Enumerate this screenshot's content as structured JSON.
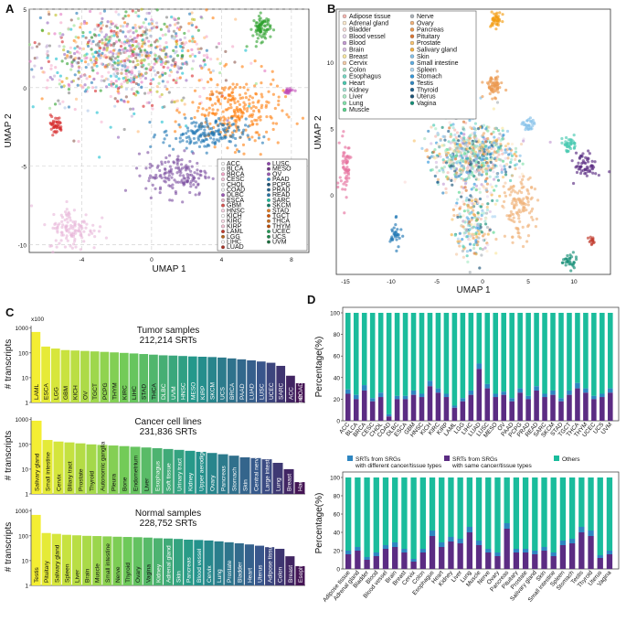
{
  "panels": {
    "a": "A",
    "b": "B",
    "c": "C",
    "d": "D"
  },
  "chart_data": [
    {
      "id": "A",
      "type": "scatter",
      "title": "",
      "xlabel": "UMAP 1",
      "ylabel": "UMAP 2",
      "xlim": [
        -7,
        9
      ],
      "ylim": [
        -10.5,
        5
      ],
      "xticks": [
        -4,
        0,
        4,
        8
      ],
      "yticks": [
        -10,
        -5,
        0,
        5
      ],
      "legend": [
        "ACC",
        "BLCA",
        "BRCA",
        "CESC",
        "CHOL",
        "COAD",
        "DLBC",
        "ESCA",
        "GBM",
        "HNSC",
        "KICH",
        "KIRC",
        "KIRP",
        "LAML",
        "LGG",
        "LIHC",
        "LUAD",
        "LUSC",
        "MESO",
        "OV",
        "PAAD",
        "PCPG",
        "PRAD",
        "READ",
        "SARC",
        "SKCM",
        "STAD",
        "TGCT",
        "THCA",
        "THYM",
        "UCEC",
        "UCS",
        "UVM"
      ],
      "legend_colors": [
        "#f7f7f7",
        "#e8e8e8",
        "#f4a6c8",
        "#f2c6d9",
        "#e6e6e6",
        "#f0f0f0",
        "#9b59b6",
        "#e8b6c8",
        "#d9534f",
        "#f6d2e0",
        "#ffffff",
        "#f9dbe6",
        "#f4c2d4",
        "#c0392b",
        "#b5651d",
        "#f8f8f8",
        "#a93226",
        "#8e44ad",
        "#6c3483",
        "#9b59b6",
        "#2e86c1",
        "#1a5276",
        "#21618c",
        "#2874a6",
        "#1abc9c",
        "#117a65",
        "#e67e22",
        "#d35400",
        "#ca6f1e",
        "#ba4a00",
        "#239b56",
        "#1e8449",
        "#196f3d"
      ],
      "clusters": [
        {
          "name": "main",
          "cx": -1.5,
          "cy": 2,
          "sx": 2.6,
          "sy": 1.6,
          "n": 900
        },
        {
          "name": "green-top",
          "cx": 6.3,
          "cy": 3.8,
          "sx": 0.25,
          "sy": 0.4,
          "n": 80
        },
        {
          "name": "orange",
          "cx": 4.8,
          "cy": -1.5,
          "sx": 1.3,
          "sy": 1.1,
          "n": 260
        },
        {
          "name": "blue",
          "cx": 3,
          "cy": -3,
          "sx": 1.2,
          "sy": 0.5,
          "n": 160
        },
        {
          "name": "purple",
          "cx": 1.5,
          "cy": -5.5,
          "sx": 0.9,
          "sy": 0.7,
          "n": 150
        },
        {
          "name": "pink-bottom",
          "cx": -4.5,
          "cy": -9,
          "sx": 0.7,
          "sy": 0.7,
          "n": 120
        },
        {
          "name": "red-left",
          "cx": -5.5,
          "cy": -2.4,
          "sx": 0.2,
          "sy": 0.3,
          "n": 40
        },
        {
          "name": "magenta-right",
          "cx": 7.8,
          "cy": -0.2,
          "sx": 0.2,
          "sy": 0.1,
          "n": 20
        }
      ]
    },
    {
      "id": "B",
      "type": "scatter",
      "xlabel": "UMAP 1",
      "ylabel": "UMAP 2",
      "xlim": [
        -16,
        14
      ],
      "ylim": [
        -6,
        14
      ],
      "xticks": [
        -15,
        -10,
        -5,
        0,
        5,
        10
      ],
      "yticks": [
        0,
        5,
        10
      ],
      "legend": [
        "Adipose tissue",
        "Adrenal gland",
        "Bladder",
        "Blood vessel",
        "Blood",
        "Brain",
        "Breast",
        "Cervix",
        "Colon",
        "Esophagus",
        "Heart",
        "Kidney",
        "Liver",
        "Lung",
        "Muscle",
        "Nerve",
        "Ovary",
        "Pancreas",
        "Pituitary",
        "Prostate",
        "Salivary gland",
        "Skin",
        "Small intestine",
        "Spleen",
        "Stomach",
        "Testis",
        "Thyroid",
        "Uterus",
        "Vagina"
      ],
      "legend_colors": [
        "#f5b7b1",
        "#fdebd0",
        "#fadbd8",
        "#e8daef",
        "#c39bd3",
        "#d7bde2",
        "#f9e79f",
        "#f5cba7",
        "#a9dfbf",
        "#76d7c4",
        "#48c9b0",
        "#a3e4d7",
        "#abebc6",
        "#82e0aa",
        "#58d68d",
        "#abb2b9",
        "#f0b27a",
        "#eb984e",
        "#dc7633",
        "#f8c471",
        "#f5b041",
        "#85c1e9",
        "#5dade2",
        "#aed6f1",
        "#3498db",
        "#2e86c1",
        "#1f618d",
        "#1a5276",
        "#138d75"
      ]
    },
    {
      "id": "C",
      "type": "bar",
      "ylabel": "# transcripts",
      "yscale": "log",
      "yunit": "x100",
      "yticks": [
        1,
        10,
        100,
        1000
      ],
      "subplots": [
        {
          "title": "Tumor samples",
          "subtitle": "212,214 SRTs",
          "categories": [
            "LAML",
            "ESCA",
            "LGG",
            "GBM",
            "KICH",
            "OV",
            "TGCT",
            "PCPG",
            "THYM",
            "KIRC",
            "LIHC",
            "STAD",
            "THCA",
            "DLBC",
            "UVM",
            "HNSC",
            "MESO",
            "KIRP",
            "SKCM",
            "UCS",
            "BRCA",
            "PAAD",
            "LUAD",
            "LUSC",
            "UCEC",
            "SARC",
            "ACC",
            "COAD"
          ],
          "values": [
            700,
            180,
            150,
            130,
            125,
            120,
            115,
            110,
            105,
            100,
            95,
            90,
            85,
            80,
            78,
            75,
            72,
            70,
            68,
            65,
            60,
            55,
            50,
            45,
            40,
            30,
            12,
            6
          ]
        },
        {
          "title": "Cancer cell lines",
          "subtitle": "231,836 SRTs",
          "categories": [
            "Salivary gland",
            "Small intestine",
            "Cervix",
            "Biliary tract",
            "Prostate",
            "Thyroid",
            "Autonomic ganglia",
            "Pleura",
            "Bone",
            "Endometrium",
            "Liver",
            "Esophagus",
            "Soft tissue",
            "Urinary tract",
            "Kidney",
            "Upper aerodigestive tract",
            "Ovary",
            "Pancreas",
            "Stomach",
            "Skin",
            "Central nervous system",
            "Large intestine",
            "Lung",
            "Breast",
            "Haematopoietic and lymphoid tissue"
          ],
          "values": [
            900,
            150,
            130,
            120,
            110,
            100,
            95,
            90,
            85,
            80,
            75,
            70,
            65,
            60,
            55,
            50,
            45,
            40,
            35,
            30,
            28,
            25,
            18,
            10,
            3
          ]
        },
        {
          "title": "Normal samples",
          "subtitle": "228,752 SRTs",
          "categories": [
            "Testis",
            "Pituitary",
            "Salivary gland",
            "Spleen",
            "Liver",
            "Brain",
            "Muscle",
            "Small intestine",
            "Nerve",
            "Thyroid",
            "Ovary",
            "Vagina",
            "Kidney",
            "Adrenal gland",
            "Skin",
            "Pancreas",
            "Blood vessel",
            "Cervix",
            "Lung",
            "Prostate",
            "Bladder",
            "Heart",
            "Uterus",
            "Adipose tissue",
            "Colon",
            "Breast",
            "Esophagus"
          ],
          "values": [
            700,
            130,
            120,
            110,
            105,
            100,
            98,
            95,
            92,
            90,
            88,
            85,
            80,
            78,
            75,
            70,
            68,
            65,
            60,
            55,
            50,
            45,
            40,
            35,
            30,
            15,
            6
          ]
        }
      ]
    },
    {
      "id": "D",
      "type": "bar",
      "stacked": true,
      "ylabel": "Percentage(%)",
      "ylim": [
        0,
        100
      ],
      "yticks": [
        0,
        20,
        40,
        60,
        80,
        100
      ],
      "legend": [
        "SRTs from SRGs with different cancer/tissue types",
        "SRTs from SRGs with same cancer/tissue types",
        "Others"
      ],
      "legend_colors": [
        "#2e86c1",
        "#5b2c83",
        "#1abc9c"
      ],
      "subplots": [
        {
          "categories": [
            "ACC",
            "BLCA",
            "BRCA",
            "CESC",
            "CHOL",
            "COAD",
            "DLBC",
            "ESCA",
            "GBM",
            "HNSC",
            "KICH",
            "KIRC",
            "KIRP",
            "LAML",
            "LGG",
            "LIHC",
            "LUAD",
            "LUSC",
            "MESO",
            "OV",
            "PAAD",
            "PCPG",
            "PRAD",
            "READ",
            "SARC",
            "SKCM",
            "STAD",
            "TGCT",
            "THCA",
            "THYM",
            "UCEC",
            "UCS",
            "UVM"
          ],
          "same": [
            25,
            20,
            28,
            18,
            22,
            4,
            20,
            20,
            24,
            22,
            32,
            26,
            22,
            12,
            18,
            24,
            48,
            30,
            22,
            24,
            18,
            26,
            20,
            28,
            22,
            24,
            18,
            24,
            30,
            26,
            20,
            22,
            26
          ],
          "different": [
            4,
            4,
            5,
            3,
            4,
            2,
            3,
            3,
            4,
            3,
            5,
            4,
            3,
            2,
            3,
            4,
            5,
            4,
            3,
            3,
            3,
            4,
            3,
            4,
            3,
            4,
            3,
            4,
            5,
            4,
            3,
            3,
            4
          ]
        },
        {
          "categories": [
            "Adipose tissue",
            "Adrenal gland",
            "Bladder",
            "Blood",
            "Blood vessel",
            "Brain",
            "Breast",
            "Cervix",
            "Colon",
            "Esophagus",
            "Heart",
            "Kidney",
            "Liver",
            "Lung",
            "Muscle",
            "Nerve",
            "Ovary",
            "Pancreas",
            "Pituitary",
            "Prostate",
            "Salivary gland",
            "Skin",
            "Small intestine",
            "Spleen",
            "Stomach",
            "Testis",
            "Thyroid",
            "Uterus",
            "Vagina"
          ],
          "same": [
            16,
            20,
            10,
            14,
            22,
            24,
            18,
            8,
            18,
            36,
            24,
            30,
            28,
            40,
            26,
            18,
            14,
            44,
            18,
            18,
            16,
            20,
            14,
            26,
            28,
            40,
            36,
            12,
            16
          ],
          "different": [
            4,
            4,
            3,
            4,
            4,
            5,
            4,
            3,
            4,
            6,
            5,
            5,
            5,
            6,
            5,
            4,
            4,
            6,
            4,
            4,
            4,
            4,
            4,
            5,
            5,
            6,
            6,
            3,
            4
          ]
        }
      ]
    }
  ]
}
